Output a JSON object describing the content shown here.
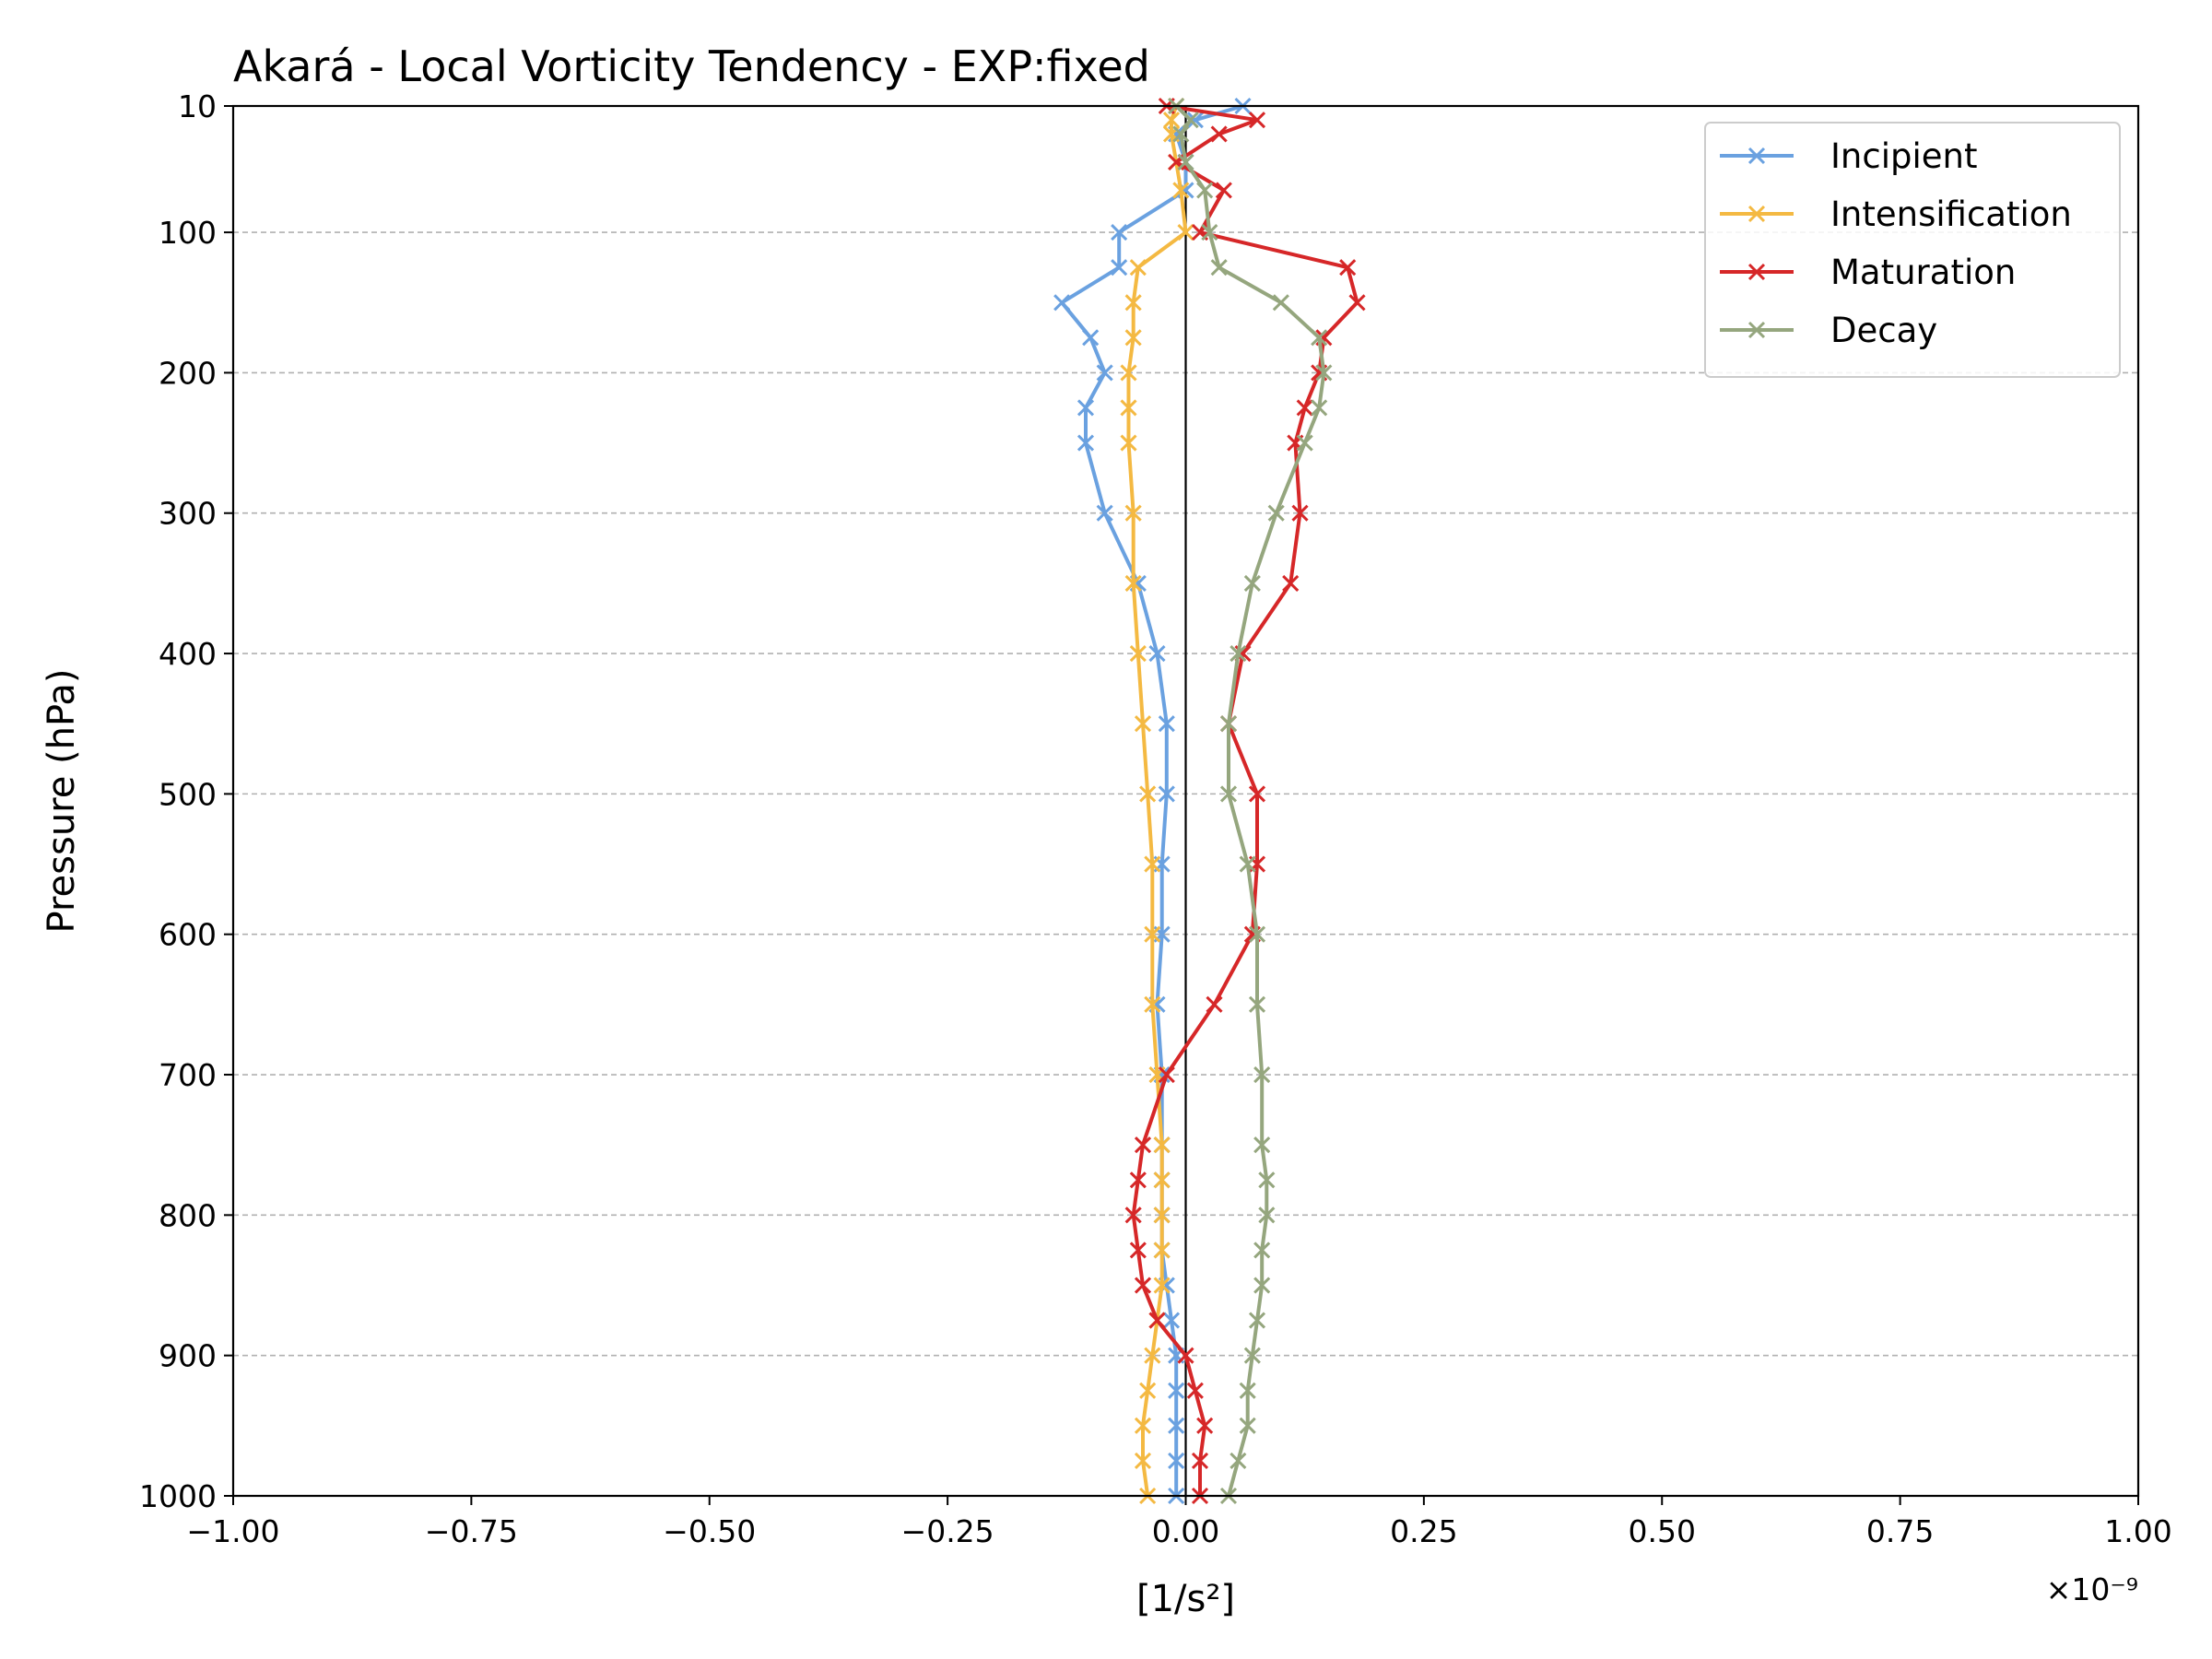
{
  "chart_data": {
    "type": "line",
    "title": "Akará - Local Vorticity Tendency - EXP:fixed",
    "xlabel": "[1/s²]",
    "ylabel": "Pressure (hPa)",
    "x_offset_label": "×10⁻⁹",
    "x_scale": 1e-09,
    "xlim": [
      -1.0,
      1.0
    ],
    "ylim": [
      1000,
      10
    ],
    "y_inverted": true,
    "x_ticks": [
      -1.0,
      -0.75,
      -0.5,
      -0.25,
      0.0,
      0.25,
      0.5,
      0.75,
      1.0
    ],
    "x_tick_labels": [
      "−1.00",
      "−0.75",
      "−0.50",
      "−0.25",
      "0.00",
      "0.25",
      "0.50",
      "0.75",
      "1.00"
    ],
    "y_ticks": [
      10,
      100,
      200,
      300,
      400,
      500,
      600,
      700,
      800,
      900,
      1000
    ],
    "y_tick_labels": [
      "10",
      "100",
      "200",
      "300",
      "400",
      "500",
      "600",
      "700",
      "800",
      "900",
      "1000"
    ],
    "grid": "horizontal dashed",
    "zero_line": true,
    "legend_position": "top-right",
    "pressure_levels": [
      10,
      20,
      30,
      50,
      70,
      100,
      125,
      150,
      175,
      200,
      225,
      250,
      300,
      350,
      400,
      450,
      500,
      550,
      600,
      650,
      700,
      750,
      775,
      800,
      825,
      850,
      875,
      900,
      925,
      950,
      975,
      1000
    ],
    "series": [
      {
        "name": "Incipient",
        "color": "#6aa1e0",
        "values": [
          0.06,
          0.01,
          -0.01,
          0.0,
          0.0,
          -0.07,
          -0.07,
          -0.13,
          -0.1,
          -0.085,
          -0.105,
          -0.105,
          -0.085,
          -0.05,
          -0.03,
          -0.02,
          -0.02,
          -0.025,
          -0.025,
          -0.03,
          -0.025,
          -0.025,
          -0.025,
          -0.025,
          -0.025,
          -0.02,
          -0.015,
          -0.01,
          -0.01,
          -0.01,
          -0.01,
          -0.01
        ]
      },
      {
        "name": "Intensification",
        "color": "#f4b942",
        "values": [
          -0.01,
          -0.015,
          -0.015,
          -0.01,
          -0.005,
          0.0,
          -0.05,
          -0.055,
          -0.055,
          -0.06,
          -0.06,
          -0.06,
          -0.055,
          -0.055,
          -0.05,
          -0.045,
          -0.04,
          -0.035,
          -0.035,
          -0.035,
          -0.03,
          -0.025,
          -0.025,
          -0.025,
          -0.025,
          -0.025,
          -0.03,
          -0.035,
          -0.04,
          -0.045,
          -0.045,
          -0.04
        ]
      },
      {
        "name": "Maturation",
        "color": "#d62728",
        "values": [
          -0.02,
          0.075,
          0.035,
          -0.01,
          0.04,
          0.015,
          0.17,
          0.18,
          0.145,
          0.14,
          0.125,
          0.115,
          0.12,
          0.11,
          0.06,
          0.045,
          0.075,
          0.075,
          0.07,
          0.03,
          -0.02,
          -0.045,
          -0.05,
          -0.055,
          -0.05,
          -0.045,
          -0.03,
          0.0,
          0.01,
          0.02,
          0.015,
          0.015
        ]
      },
      {
        "name": "Decay",
        "color": "#95a67e",
        "values": [
          -0.01,
          0.005,
          -0.005,
          0.0,
          0.02,
          0.025,
          0.035,
          0.1,
          0.14,
          0.145,
          0.14,
          0.125,
          0.095,
          0.07,
          0.055,
          0.045,
          0.045,
          0.065,
          0.075,
          0.075,
          0.08,
          0.08,
          0.085,
          0.085,
          0.08,
          0.08,
          0.075,
          0.07,
          0.065,
          0.065,
          0.055,
          0.045
        ]
      }
    ]
  }
}
